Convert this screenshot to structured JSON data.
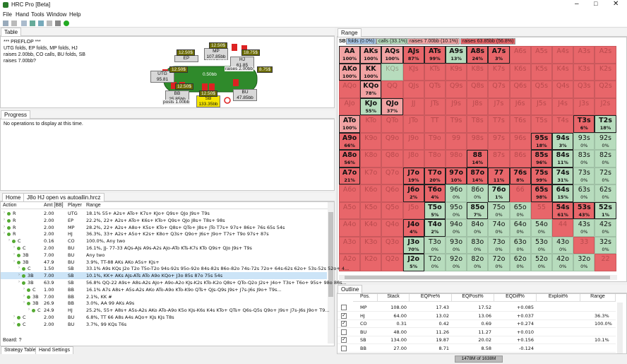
{
  "window": {
    "title": "HRC Pro [Beta]"
  },
  "menu": [
    "File",
    "Hand",
    "Tools",
    "Window",
    "Help"
  ],
  "table_view": {
    "tab": "Table",
    "history": [
      "*** PREFLOP ***",
      "UTG folds, EP folds, MP folds, HJ",
      "raises 2.00bb, CO calls, BU folds, SB",
      "raises 7.00bb?"
    ],
    "seats": [
      {
        "name": "UTG",
        "stack": "95.81"
      },
      {
        "name": "EP"
      },
      {
        "name": "MP",
        "stack": "107.85bb"
      },
      {
        "name": "HJ",
        "stack": "61.85"
      },
      {
        "name": "BU",
        "stack": "47.85bb"
      },
      {
        "name": "SB",
        "stack": "133.35bb"
      },
      {
        "name": "BB",
        "stack": "25.85bb"
      }
    ],
    "chips": [
      "12.50$",
      "12.50$",
      "12.50$",
      "18.75$",
      "12.50$",
      "8.75$",
      "12.50$"
    ],
    "pot": [
      "Pot:",
      "4.86bb"
    ],
    "actions": [
      "raises 2.00bb",
      "0.50bb",
      "posts 1.00bb"
    ]
  },
  "progress_view": {
    "tab": "Progress",
    "message": "No operations to display at this time."
  },
  "tree_view": {
    "tabs": [
      "Home",
      "J8o HJ open vs autoallin.hrcz"
    ],
    "columns": [
      "Action",
      "Amt [BB]",
      "Player",
      "Range"
    ],
    "rows": [
      [
        "R",
        "2.00",
        "UTG",
        "18.1% 55+ A2s+ ATo+ K7s+ KJo+ Q9s+ QJo J9s+ T9s"
      ],
      [
        "R",
        "2.00",
        "EP",
        "22.2%, 22+ A2s+ ATo+ K6s+ KTo+ Q9s+ QJo J8s+ T8s+ 98s"
      ],
      [
        "R",
        "2.00",
        "MP",
        "28.2%, 22+ A2s+ A8o+ K5s+ KTo+ Q8s+ QTo+ J8s+ JTo T7s+ 97s+ 86s+ 76s 65s 54s"
      ],
      [
        "R",
        "2.00",
        "HJ",
        "36.3%, 33+ A2s+ A5o+ K2s+ K8o+ Q3s+ Q9o+ J6s+ J9o+ T7s+ T9o 97s+ 87s"
      ],
      [
        "C",
        "0.16",
        "CO",
        "100.0%, Any two"
      ],
      [
        "C",
        "2.00",
        "BU",
        "16.1%, JJ- 77-33 AQs-AJs A9s-A2s AJo-ATo KTs-K7s KTo Q9s+ QJo J9s+ T9s"
      ],
      [
        "3B",
        "7.00",
        "BU",
        "Any two"
      ],
      [
        "3B",
        "47.9",
        "BU",
        "3.9%, TT-88 AKs AKo A5s+ KJs+"
      ],
      [
        "C",
        "1.50",
        "SB",
        "33.1% A9s KQs J2o T2o T5o-T2o 94s-92s 95o-92o 84s-82s 86o-82o 74s-72s 72o+ 64s-62s 62o+ 53s-52s 52o+ 4..."
      ],
      [
        "3B",
        "7.00",
        "SB",
        "10.1%, KK+ AKs AJs-ATs ATo A9o KQo+ J3o 85s 87o 75s 54s"
      ],
      [
        "3B",
        "63.9",
        "SB",
        "56.8% QQ-22 A9s+ A8s-A2s AJo+ A9o-A2o KJs-K2s KTo-K2o Q8s+ QTo-Q2o J2s+ J4o+ T3s+ T6o+ 95s+ 98o 86s..."
      ],
      [
        "C",
        "1.00",
        "BB",
        "16.1% A7s A8s+ A5s-A2s AKo ATo-A9o KTo-K9o QTs+ QJs-Q9s J9s+ J7s-J6s J9o+ T9s..."
      ],
      [
        "3B",
        "7.00",
        "BB",
        "2.1%, KK #"
      ],
      [
        "3B",
        "26.9",
        "BB",
        "3.0%, AA 99 AKs A9s"
      ],
      [
        "C",
        "24.9",
        "HJ",
        "25.2%, 55+ A8s+ A5s-A2s AKo ATo-A9o K5o KJs-K6s K4s KTo+ QTs+ Q6s-Q5s Q9o+ J9s+ J7s-J6s J9o+ T9..."
      ],
      [
        "C",
        "2.00",
        "BU",
        "6.8%, TT 66 A8s A4s AQo+ KJs KJs T8s"
      ],
      [
        "C",
        "2.00",
        "BU",
        "3.7%, 99 KQs T6s"
      ]
    ],
    "board": "Board: ?",
    "bottom_tabs": [
      "Strategy Table",
      "Hand Settings"
    ]
  },
  "range_view": {
    "tab": "Range",
    "player": "SB:",
    "legend": [
      {
        "label": "folds (0.0%)",
        "color": "#a9c8ea"
      },
      {
        "label": "calls (33.1%)",
        "color": "#b7dcbd"
      },
      {
        "label": "raises 7.00bb (10.1%)",
        "color": "#f1a3a3"
      },
      {
        "label": "raises 63.85bb (56.8%)",
        "color": "#e8666a"
      }
    ],
    "grid": [
      [
        {
          "h": "AA",
          "p": "100%",
          "c": "#f1a3a3"
        },
        {
          "h": "AKs",
          "p": "100%",
          "c": "#f1a3a3"
        },
        {
          "h": "AQs",
          "p": "100%",
          "c": "#f1a3a3"
        },
        {
          "h": "AJs",
          "p": "87%",
          "c": "#e8666a"
        },
        {
          "h": "ATs",
          "p": "99%",
          "c": "#e8666a"
        },
        {
          "h": "A9s",
          "p": "13%",
          "c": "#b7dcbd"
        },
        {
          "h": "A8s",
          "p": "24%",
          "c": "#e8666a"
        },
        {
          "h": "A7s",
          "p": "3%",
          "c": "#e8666a"
        },
        {
          "h": "A6s",
          "c": "#e8666a"
        },
        {
          "h": "A5s",
          "c": "#e8666a"
        },
        {
          "h": "A4s",
          "c": "#e8666a"
        },
        {
          "h": "A3s",
          "c": "#e8666a"
        },
        {
          "h": "A2s",
          "c": "#e8666a"
        }
      ],
      [
        {
          "h": "AKo",
          "p": "100%",
          "c": "#f1a3a3"
        },
        {
          "h": "KK",
          "p": "100%",
          "c": "#f1a3a3"
        },
        {
          "h": "KQs",
          "c": "#b7dcbd"
        },
        {
          "h": "KJs",
          "c": "#e8666a"
        },
        {
          "h": "KTs",
          "c": "#e8666a"
        },
        {
          "h": "K9s",
          "c": "#e8666a"
        },
        {
          "h": "K8s",
          "c": "#e8666a"
        },
        {
          "h": "K7s",
          "c": "#e8666a"
        },
        {
          "h": "K6s",
          "c": "#e8666a"
        },
        {
          "h": "K5s",
          "c": "#e8666a"
        },
        {
          "h": "K4s",
          "c": "#e8666a"
        },
        {
          "h": "K3s",
          "c": "#e8666a"
        },
        {
          "h": "K2s",
          "c": "#e8666a"
        }
      ],
      [
        {
          "h": "AQo",
          "c": "#e8666a"
        },
        {
          "h": "KQo",
          "p": "78%",
          "c": "#f1a3a3"
        },
        {
          "h": "QQ",
          "c": "#e8666a"
        },
        {
          "h": "QJs",
          "c": "#e8666a"
        },
        {
          "h": "QTs",
          "c": "#e8666a"
        },
        {
          "h": "Q9s",
          "c": "#e8666a"
        },
        {
          "h": "Q8s",
          "c": "#e8666a"
        },
        {
          "h": "Q7s",
          "c": "#e8666a"
        },
        {
          "h": "Q6s",
          "c": "#e8666a"
        },
        {
          "h": "Q5s",
          "c": "#e8666a"
        },
        {
          "h": "Q4s",
          "c": "#e8666a"
        },
        {
          "h": "Q3s",
          "c": "#e8666a"
        },
        {
          "h": "Q2s",
          "c": "#e8666a"
        }
      ],
      [
        {
          "h": "AJo",
          "c": "#e8666a"
        },
        {
          "h": "KJo",
          "p": "55%",
          "c": "#b7dcbd"
        },
        {
          "h": "QJo",
          "p": "37%",
          "c": "#f1a3a3"
        },
        {
          "h": "JJ",
          "c": "#e8666a"
        },
        {
          "h": "JTs",
          "c": "#e8666a"
        },
        {
          "h": "J9s",
          "c": "#e8666a"
        },
        {
          "h": "J8s",
          "c": "#e8666a"
        },
        {
          "h": "J7s",
          "c": "#e8666a"
        },
        {
          "h": "J6s",
          "c": "#e8666a"
        },
        {
          "h": "J5s",
          "c": "#e8666a"
        },
        {
          "h": "J4s",
          "c": "#e8666a"
        },
        {
          "h": "J3s",
          "c": "#e8666a"
        },
        {
          "h": "J2s",
          "c": "#e8666a"
        }
      ],
      [
        {
          "h": "ATo",
          "p": "100%",
          "c": "#f1a3a3"
        },
        {
          "h": "KTo",
          "c": "#e8666a"
        },
        {
          "h": "QTo",
          "c": "#e8666a"
        },
        {
          "h": "JTo",
          "c": "#e8666a"
        },
        {
          "h": "TT",
          "c": "#e8666a"
        },
        {
          "h": "T9s",
          "c": "#e8666a"
        },
        {
          "h": "T8s",
          "c": "#e8666a"
        },
        {
          "h": "T7s",
          "c": "#e8666a"
        },
        {
          "h": "T6s",
          "c": "#e8666a"
        },
        {
          "h": "T5s",
          "c": "#e8666a"
        },
        {
          "h": "T4s",
          "c": "#e8666a"
        },
        {
          "h": "T3s",
          "p": "6%",
          "c": "#e8666a"
        },
        {
          "h": "T2s",
          "p": "18%",
          "c": "#b7dcbd"
        }
      ],
      [
        {
          "h": "A9o",
          "p": "66%",
          "c": "#e8666a"
        },
        {
          "h": "K9o",
          "c": "#e8666a"
        },
        {
          "h": "Q9o",
          "c": "#e8666a"
        },
        {
          "h": "J9o",
          "c": "#e8666a"
        },
        {
          "h": "T9o",
          "c": "#e8666a"
        },
        {
          "h": "99",
          "c": "#e8666a"
        },
        {
          "h": "98s",
          "c": "#e8666a"
        },
        {
          "h": "97s",
          "c": "#e8666a"
        },
        {
          "h": "96s",
          "c": "#e8666a"
        },
        {
          "h": "95s",
          "p": "18%",
          "c": "#e8666a"
        },
        {
          "h": "94s",
          "p": "3%",
          "c": "#b7dcbd"
        },
        {
          "h": "93s",
          "p": "0%",
          "c": "#b7dcbd"
        },
        {
          "h": "92s",
          "p": "0%",
          "c": "#b7dcbd"
        }
      ],
      [
        {
          "h": "A8o",
          "p": "56%",
          "c": "#e8666a"
        },
        {
          "h": "K8o",
          "c": "#e8666a"
        },
        {
          "h": "Q8o",
          "c": "#e8666a"
        },
        {
          "h": "J8o",
          "c": "#e8666a"
        },
        {
          "h": "T8o",
          "c": "#e8666a"
        },
        {
          "h": "98o",
          "c": "#e8666a"
        },
        {
          "h": "88",
          "p": "14%",
          "c": "#e8666a"
        },
        {
          "h": "87s",
          "c": "#e8666a"
        },
        {
          "h": "86s",
          "c": "#e8666a"
        },
        {
          "h": "85s",
          "p": "96%",
          "c": "#e8666a"
        },
        {
          "h": "84s",
          "p": "11%",
          "c": "#b7dcbd"
        },
        {
          "h": "83s",
          "p": "0%",
          "c": "#b7dcbd"
        },
        {
          "h": "82s",
          "p": "0%",
          "c": "#b7dcbd"
        }
      ],
      [
        {
          "h": "A7o",
          "p": "21%",
          "c": "#e8666a"
        },
        {
          "h": "K7o",
          "c": "#e8666a"
        },
        {
          "h": "Q7o",
          "c": "#e8666a"
        },
        {
          "h": "J7o",
          "p": "19%",
          "c": "#e8666a"
        },
        {
          "h": "T7o",
          "p": "20%",
          "c": "#e8666a"
        },
        {
          "h": "97o",
          "p": "10%",
          "c": "#e8666a"
        },
        {
          "h": "87o",
          "p": "14%",
          "c": "#e8666a"
        },
        {
          "h": "77",
          "p": "11%",
          "c": "#e8666a"
        },
        {
          "h": "76s",
          "p": "8%",
          "c": "#e8666a"
        },
        {
          "h": "75s",
          "p": "99%",
          "c": "#e8666a"
        },
        {
          "h": "74s",
          "p": "31%",
          "c": "#b7dcbd"
        },
        {
          "h": "73s",
          "p": "0%",
          "c": "#b7dcbd"
        },
        {
          "h": "72s",
          "p": "0%",
          "c": "#b7dcbd"
        }
      ],
      [
        {
          "h": "A6o",
          "c": "#e8666a"
        },
        {
          "h": "K6o",
          "c": "#e8666a"
        },
        {
          "h": "Q6o",
          "c": "#e8666a"
        },
        {
          "h": "J6o",
          "p": "2%",
          "c": "#e8666a"
        },
        {
          "h": "T6o",
          "p": "4%",
          "c": "#e8666a"
        },
        {
          "h": "96o",
          "p": "0%",
          "c": "#b7dcbd"
        },
        {
          "h": "86o",
          "p": "0%",
          "c": "#b7dcbd"
        },
        {
          "h": "76o",
          "p": "1%",
          "c": "#b7dcbd"
        },
        {
          "h": "66",
          "c": "#e8666a"
        },
        {
          "h": "65s",
          "p": "98%",
          "c": "#e8666a"
        },
        {
          "h": "64s",
          "p": "15%",
          "c": "#b7dcbd"
        },
        {
          "h": "63s",
          "p": "0%",
          "c": "#b7dcbd"
        },
        {
          "h": "62s",
          "p": "0%",
          "c": "#b7dcbd"
        }
      ],
      [
        {
          "h": "A5o",
          "c": "#e8666a"
        },
        {
          "h": "K5o",
          "c": "#e8666a"
        },
        {
          "h": "Q5o",
          "c": "#e8666a"
        },
        {
          "h": "J5o",
          "c": "#e8666a"
        },
        {
          "h": "T5o",
          "p": "5%",
          "c": "#b7dcbd"
        },
        {
          "h": "95o",
          "p": "0%",
          "c": "#b7dcbd"
        },
        {
          "h": "85o",
          "p": "7%",
          "c": "#b7dcbd"
        },
        {
          "h": "75o",
          "p": "0%",
          "c": "#b7dcbd"
        },
        {
          "h": "65o",
          "p": "0%",
          "c": "#b7dcbd"
        },
        {
          "h": "55",
          "c": "#e8666a"
        },
        {
          "h": "54s",
          "p": "61%",
          "c": "#e8666a"
        },
        {
          "h": "53s",
          "p": "43%",
          "c": "#e8666a"
        },
        {
          "h": "52s",
          "p": "1%",
          "c": "#b7dcbd"
        }
      ],
      [
        {
          "h": "A4o",
          "c": "#e8666a"
        },
        {
          "h": "K4o",
          "c": "#e8666a"
        },
        {
          "h": "Q4o",
          "c": "#e8666a"
        },
        {
          "h": "J4o",
          "p": "4%",
          "c": "#e8666a"
        },
        {
          "h": "T4o",
          "p": "2%",
          "c": "#b7dcbd"
        },
        {
          "h": "94o",
          "p": "0%",
          "c": "#b7dcbd"
        },
        {
          "h": "84o",
          "p": "0%",
          "c": "#b7dcbd"
        },
        {
          "h": "74o",
          "p": "0%",
          "c": "#b7dcbd"
        },
        {
          "h": "64o",
          "p": "0%",
          "c": "#b7dcbd"
        },
        {
          "h": "54o",
          "p": "0%",
          "c": "#b7dcbd"
        },
        {
          "h": "44",
          "c": "#e8666a"
        },
        {
          "h": "43s",
          "p": "0%",
          "c": "#b7dcbd"
        },
        {
          "h": "42s",
          "p": "0%",
          "c": "#b7dcbd"
        }
      ],
      [
        {
          "h": "A3o",
          "c": "#e8666a"
        },
        {
          "h": "K3o",
          "c": "#e8666a"
        },
        {
          "h": "Q3o",
          "c": "#e8666a"
        },
        {
          "h": "J3o",
          "p": "70%",
          "c": "#b7dcbd"
        },
        {
          "h": "T3o",
          "p": "0%",
          "c": "#b7dcbd"
        },
        {
          "h": "93o",
          "p": "0%",
          "c": "#b7dcbd"
        },
        {
          "h": "83o",
          "p": "0%",
          "c": "#b7dcbd"
        },
        {
          "h": "73o",
          "p": "0%",
          "c": "#b7dcbd"
        },
        {
          "h": "63o",
          "p": "0%",
          "c": "#b7dcbd"
        },
        {
          "h": "53o",
          "p": "0%",
          "c": "#b7dcbd"
        },
        {
          "h": "43o",
          "p": "0%",
          "c": "#b7dcbd"
        },
        {
          "h": "33",
          "c": "#e8666a"
        },
        {
          "h": "32s",
          "p": "0%",
          "c": "#b7dcbd"
        }
      ],
      [
        {
          "h": "A2o",
          "c": "#e8666a"
        },
        {
          "h": "K2o",
          "c": "#e8666a"
        },
        {
          "h": "Q2o",
          "c": "#e8666a"
        },
        {
          "h": "J2o",
          "p": "5%",
          "c": "#b7dcbd"
        },
        {
          "h": "T2o",
          "p": "0%",
          "c": "#b7dcbd"
        },
        {
          "h": "92o",
          "p": "0%",
          "c": "#b7dcbd"
        },
        {
          "h": "82o",
          "p": "0%",
          "c": "#b7dcbd"
        },
        {
          "h": "72o",
          "p": "0%",
          "c": "#b7dcbd"
        },
        {
          "h": "62o",
          "p": "0%",
          "c": "#b7dcbd"
        },
        {
          "h": "52o",
          "p": "0%",
          "c": "#b7dcbd"
        },
        {
          "h": "42o",
          "p": "0%",
          "c": "#b7dcbd"
        },
        {
          "h": "32o",
          "p": "0%",
          "c": "#b7dcbd"
        },
        {
          "h": "22",
          "c": "#e8666a"
        }
      ]
    ]
  },
  "outline_view": {
    "tab": "Outline",
    "columns": [
      "Pos.",
      "Stack",
      "EQPre%",
      "EQPost%",
      "EQDiff%",
      "Exploit%",
      "Range"
    ],
    "rows": [
      {
        "checked": false,
        "cells": [
          "MP",
          "108.00",
          "17.43",
          "17.52",
          "+0.085"
        ]
      },
      {
        "checked": true,
        "cells": [
          "HJ",
          "64.00",
          "13.02",
          "13.06",
          "+0.037",
          "36.3%"
        ]
      },
      {
        "checked": true,
        "cells": [
          "CO",
          "0.31",
          "0.42",
          "0.69",
          "+0.274",
          "100.0%"
        ]
      },
      {
        "checked": false,
        "cells": [
          "BU",
          "48.00",
          "11.26",
          "11.27",
          "+0.010"
        ]
      },
      {
        "checked": true,
        "cells": [
          "SB",
          "134.00",
          "19.87",
          "20.02",
          "+0.156",
          "10.1%"
        ]
      },
      {
        "checked": false,
        "cells": [
          "BB",
          "27.00",
          "8.71",
          "8.58",
          "-0.124"
        ]
      }
    ]
  },
  "status": {
    "memory": "1478M of 1638M"
  }
}
